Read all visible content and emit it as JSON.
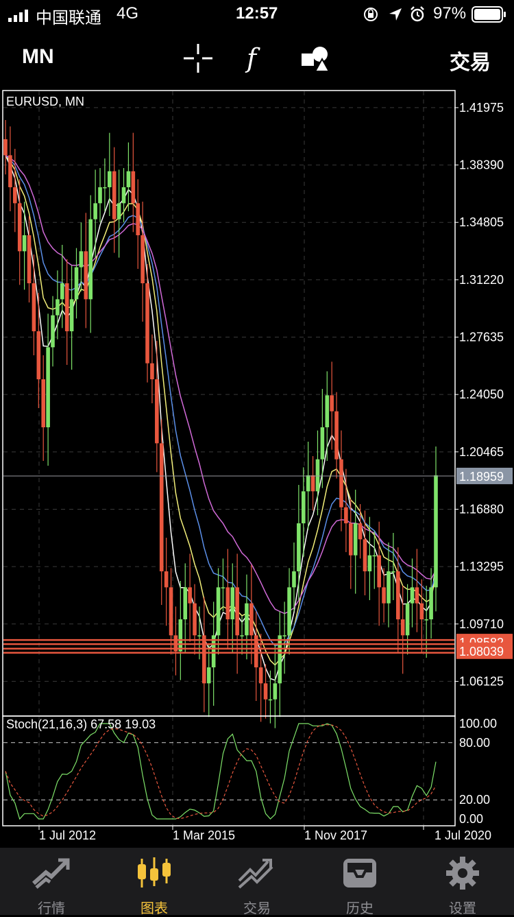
{
  "status_bar": {
    "carrier": "中国联通",
    "network": "4G",
    "time": "12:57",
    "battery": "97%"
  },
  "toolbar": {
    "timeframe": "MN",
    "trade_label": "交易",
    "icons": [
      "crosshair-icon",
      "function-icon",
      "objects-icon"
    ]
  },
  "chart": {
    "symbol_label": "EURUSD, MN",
    "price_ticks": [
      "1.41975",
      "1.38390",
      "1.34805",
      "1.31220",
      "1.27635",
      "1.24050",
      "1.20465",
      "1.16880",
      "1.13295",
      "1.09710",
      "1.06125"
    ],
    "current_price": "1.18959",
    "order_lines": [
      "1.08582",
      "1.08039"
    ],
    "date_ticks": [
      "1 Jul 2012",
      "1 Mar 2015",
      "1 Nov 2017",
      "1 Jul 2020"
    ],
    "stoch_label": "Stoch(21,16,3) 67.58 19.03",
    "stoch_ticks": [
      "100.00",
      "80.00",
      "20.00",
      "0.00"
    ],
    "colors": {
      "bull": "#7fe36a",
      "bear": "#e8573e",
      "ma_white": "#ffffff",
      "ma_yellow": "#f3ef7a",
      "ma_blue": "#5b8fe8",
      "ma_magenta": "#d16ad8",
      "order_line": "#e8573e"
    }
  },
  "chart_data": {
    "type": "candlestick",
    "symbol": "EURUSD",
    "timeframe": "MN",
    "ylim": [
      1.04,
      1.43
    ],
    "price_scale": "linear",
    "x_ticks": [
      "1 Jul 2012",
      "1 Mar 2015",
      "1 Nov 2017",
      "1 Jul 2020"
    ],
    "current_price": 1.18959,
    "horizontal_lines": [
      1.08582,
      1.08039
    ],
    "closes_approx": [
      1.39,
      1.37,
      1.36,
      1.33,
      1.34,
      1.31,
      1.28,
      1.25,
      1.22,
      1.27,
      1.29,
      1.3,
      1.31,
      1.28,
      1.3,
      1.32,
      1.33,
      1.3,
      1.35,
      1.36,
      1.37,
      1.37,
      1.38,
      1.35,
      1.36,
      1.37,
      1.38,
      1.36,
      1.34,
      1.31,
      1.26,
      1.25,
      1.21,
      1.13,
      1.12,
      1.09,
      1.08,
      1.1,
      1.12,
      1.11,
      1.09,
      1.09,
      1.06,
      1.07,
      1.09,
      1.12,
      1.12,
      1.1,
      1.12,
      1.09,
      1.09,
      1.11,
      1.09,
      1.07,
      1.06,
      1.05,
      1.05,
      1.06,
      1.09,
      1.09,
      1.12,
      1.13,
      1.16,
      1.18,
      1.19,
      1.18,
      1.2,
      1.22,
      1.24,
      1.23,
      1.2,
      1.17,
      1.16,
      1.14,
      1.16,
      1.15,
      1.13,
      1.14,
      1.14,
      1.12,
      1.11,
      1.13,
      1.13,
      1.1,
      1.09,
      1.11,
      1.12,
      1.11,
      1.1,
      1.1,
      1.12,
      1.19
    ],
    "stochastic": {
      "label": "Stoch(21,16,3)",
      "main": 67.58,
      "signal": 19.03,
      "levels": [
        20,
        80
      ],
      "ylim": [
        0,
        100
      ]
    }
  },
  "tab_bar": {
    "tabs": [
      {
        "label": "行情",
        "icon": "quotes-icon",
        "active": false
      },
      {
        "label": "图表",
        "icon": "chart-candles-icon",
        "active": true
      },
      {
        "label": "交易",
        "icon": "trade-icon",
        "active": false
      },
      {
        "label": "历史",
        "icon": "history-icon",
        "active": false
      },
      {
        "label": "设置",
        "icon": "settings-gear-icon",
        "active": false
      }
    ]
  }
}
